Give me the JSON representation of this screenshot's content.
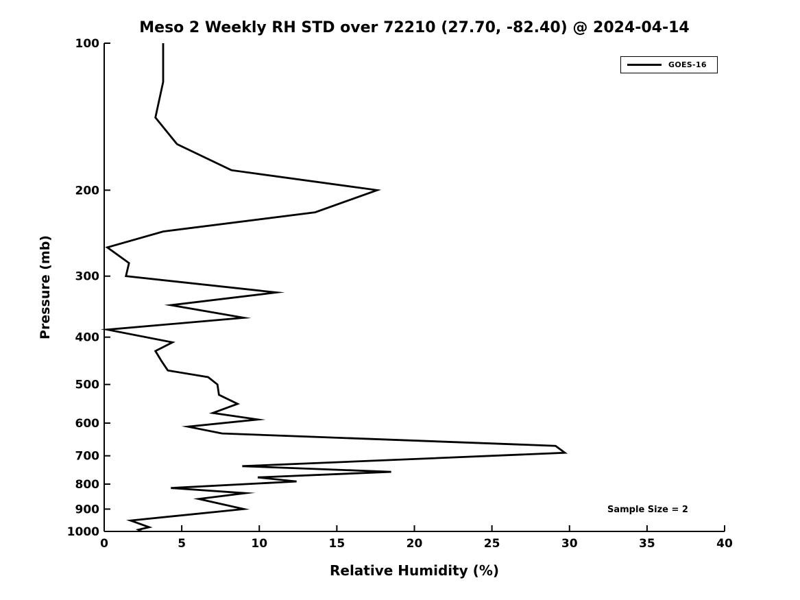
{
  "title": "Meso 2 Weekly RH STD over 72210 (27.70, -82.40) @ 2024-04-14",
  "annotation": "Sample Size = 2",
  "legend": {
    "position": "upper right",
    "entries": [
      {
        "label": "GOES-16",
        "color": "#000000"
      }
    ]
  },
  "chart_data": {
    "type": "line",
    "title": "Meso 2 Weekly RH STD over 72210 (27.70, -82.40) @ 2024-04-14",
    "xlabel": "Relative Humidity (%)",
    "ylabel": "Pressure (mb)",
    "xlim": [
      0,
      40
    ],
    "xticks": [
      0,
      5,
      10,
      15,
      20,
      25,
      30,
      35,
      40
    ],
    "ylim": [
      100,
      1000
    ],
    "yscale": "log",
    "y_inverted": true,
    "yticks": [
      100,
      200,
      300,
      400,
      500,
      600,
      700,
      800,
      900,
      1000
    ],
    "grid": false,
    "legend_position": "upper right",
    "annotations": [
      {
        "text": "Sample Size = 2"
      }
    ],
    "series": [
      {
        "name": "GOES-16",
        "color": "#000000",
        "points_format": "[relative_humidity_percent, pressure_mb]",
        "points": [
          [
            3.8,
            100
          ],
          [
            3.8,
            120
          ],
          [
            3.3,
            142
          ],
          [
            4.7,
            161
          ],
          [
            8.2,
            182
          ],
          [
            17.6,
            200
          ],
          [
            13.6,
            222
          ],
          [
            3.8,
            243
          ],
          [
            0.2,
            262
          ],
          [
            1.6,
            282
          ],
          [
            1.4,
            300
          ],
          [
            11.1,
            324
          ],
          [
            4.3,
            344
          ],
          [
            9.0,
            365
          ],
          [
            0.2,
            386
          ],
          [
            4.4,
            410
          ],
          [
            3.3,
            427
          ],
          [
            3.7,
            448
          ],
          [
            4.1,
            468
          ],
          [
            6.7,
            483
          ],
          [
            7.3,
            500
          ],
          [
            7.4,
            525
          ],
          [
            8.6,
            548
          ],
          [
            7.0,
            572
          ],
          [
            9.9,
            590
          ],
          [
            5.4,
            610
          ],
          [
            7.6,
            630
          ],
          [
            29.1,
            668
          ],
          [
            29.7,
            690
          ],
          [
            8.9,
            735
          ],
          [
            18.5,
            755
          ],
          [
            9.9,
            775
          ],
          [
            12.4,
            790
          ],
          [
            4.3,
            815
          ],
          [
            9.1,
            835
          ],
          [
            6.1,
            858
          ],
          [
            9.0,
            900
          ],
          [
            1.7,
            950
          ],
          [
            2.9,
            980
          ],
          [
            2.2,
            992
          ],
          [
            2.4,
            1000
          ]
        ]
      }
    ]
  }
}
